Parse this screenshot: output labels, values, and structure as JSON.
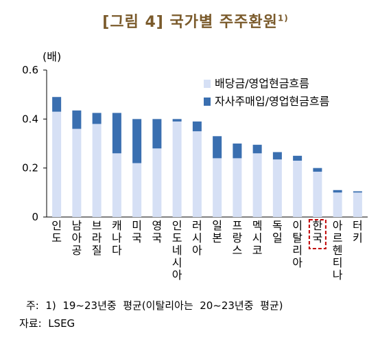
{
  "title": {
    "text": "[그림 4]  국가별  주주환원",
    "sup": "1)"
  },
  "note": "주:  1)  19~23년중  평균(이탈리아는  20~23년중  평균)",
  "source": "자료:  LSEG",
  "colors": {
    "dividend": "#d6e0f5",
    "buyback": "#3a6fb0",
    "highlight": "#c00000"
  },
  "chart_data": {
    "type": "bar",
    "stacked": true,
    "unit_label": "(배)",
    "ylim": [
      0,
      0.6
    ],
    "yticks": [
      "0",
      "0.2",
      "0.4",
      "0.6"
    ],
    "highlight_index": 13,
    "categories": [
      "인도",
      "남아공",
      "브라질",
      "캐나다",
      "미국",
      "영국",
      "인도네시아",
      "러시아",
      "일본",
      "프랑스",
      "멕시코",
      "독일",
      "이탈리아",
      "한국",
      "아르헨티나",
      "터키"
    ],
    "series": [
      {
        "name": "배당금/영업현금흐름",
        "values": [
          0.43,
          0.36,
          0.38,
          0.26,
          0.22,
          0.28,
          0.39,
          0.35,
          0.24,
          0.24,
          0.26,
          0.235,
          0.23,
          0.185,
          0.1,
          0.1
        ]
      },
      {
        "name": "자사주매입/영업현금흐름",
        "values": [
          0.06,
          0.075,
          0.045,
          0.165,
          0.18,
          0.12,
          0.01,
          0.04,
          0.09,
          0.06,
          0.035,
          0.03,
          0.02,
          0.015,
          0.01,
          0.005
        ]
      }
    ]
  }
}
